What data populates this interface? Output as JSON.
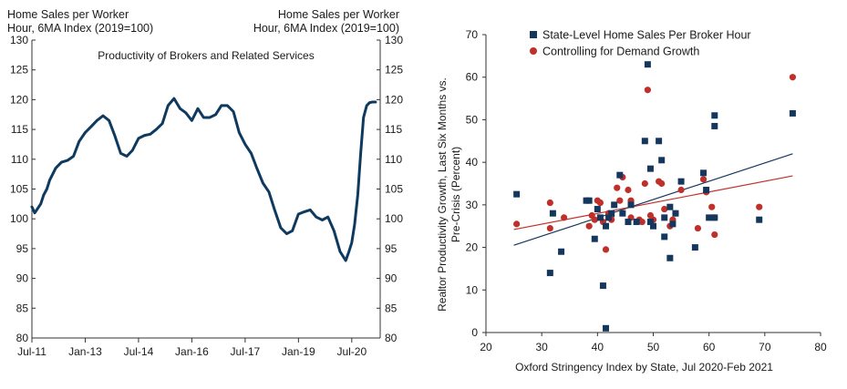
{
  "colors": {
    "line": "#0f3a5f",
    "blue_series": "#16375d",
    "red_series": "#c0302b",
    "axis": "#333333"
  },
  "chart_data": [
    {
      "type": "line",
      "title": "Productivity of Brokers and Related Services",
      "left_axis_label": [
        "Home Sales per Worker",
        "Hour, 6MA Index (2019=100)"
      ],
      "right_axis_label": [
        "Home Sales per Worker",
        "Hour, 6MA Index (2019=100)"
      ],
      "x_tick_labels": [
        "Jul-11",
        "Jan-13",
        "Jul-14",
        "Jan-16",
        "Jul-17",
        "Jan-19",
        "Jul-20"
      ],
      "x_tick_positions": [
        2011.5,
        2013.0,
        2014.5,
        2016.0,
        2017.5,
        2019.0,
        2020.5
      ],
      "xlim": [
        2011.5,
        2021.3
      ],
      "ylim": [
        80,
        130
      ],
      "y_ticks": [
        80,
        85,
        90,
        95,
        100,
        105,
        110,
        115,
        120,
        125,
        130
      ],
      "series": [
        {
          "name": "Home Sales per Worker Hour, 6MA Index (2019=100)",
          "x": [
            2011.5,
            2011.58,
            2011.67,
            2011.75,
            2011.83,
            2011.92,
            2012.0,
            2012.17,
            2012.33,
            2012.5,
            2012.67,
            2012.83,
            2013.0,
            2013.17,
            2013.33,
            2013.5,
            2013.67,
            2013.83,
            2014.0,
            2014.17,
            2014.33,
            2014.5,
            2014.67,
            2014.83,
            2015.0,
            2015.17,
            2015.33,
            2015.5,
            2015.67,
            2015.83,
            2016.0,
            2016.17,
            2016.33,
            2016.5,
            2016.67,
            2016.83,
            2017.0,
            2017.17,
            2017.33,
            2017.5,
            2017.67,
            2017.83,
            2018.0,
            2018.17,
            2018.33,
            2018.5,
            2018.67,
            2018.83,
            2019.0,
            2019.17,
            2019.33,
            2019.5,
            2019.67,
            2019.83,
            2020.0,
            2020.17,
            2020.33,
            2020.42,
            2020.5,
            2020.58,
            2020.67,
            2020.75,
            2020.83,
            2020.92,
            2021.0,
            2021.08,
            2021.17
          ],
          "y": [
            102,
            101,
            101.8,
            102.5,
            104,
            105,
            106.5,
            108.5,
            109.5,
            109.8,
            110.5,
            113,
            114.5,
            115.5,
            116.5,
            117.3,
            116.5,
            114,
            111,
            110.5,
            111.5,
            113.5,
            114,
            114.2,
            115,
            116,
            119,
            120.2,
            118.5,
            117.8,
            116.5,
            118.5,
            117,
            117,
            117.5,
            119,
            119,
            118,
            114.5,
            112.5,
            111,
            108.5,
            106,
            104.5,
            101.5,
            98.5,
            97.5,
            98,
            100.8,
            101.2,
            101.5,
            100.3,
            99.8,
            100.3,
            98,
            94.5,
            93,
            94.5,
            96,
            99,
            104,
            111,
            117,
            119,
            119.5,
            119.6,
            119.6
          ]
        }
      ]
    },
    {
      "type": "scatter",
      "xlabel": "Oxford Stringency Index by State, Jul 2020-Feb 2021",
      "ylabel": [
        "Realtor Productivity Growth, Last Six Months vs.",
        "Pre-Crisis (Percent)"
      ],
      "xlim": [
        20,
        80
      ],
      "ylim": [
        0,
        70
      ],
      "x_ticks": [
        20,
        30,
        40,
        50,
        60,
        70,
        80
      ],
      "y_ticks": [
        0,
        10,
        20,
        30,
        40,
        50,
        60,
        70
      ],
      "legend_position": "top-left",
      "series": [
        {
          "name": "State-Level Home Sales Per Broker Hour",
          "marker": "square",
          "points": [
            [
              25.5,
              32.5
            ],
            [
              31.5,
              14
            ],
            [
              32,
              28
            ],
            [
              33.5,
              19
            ],
            [
              38,
              31
            ],
            [
              38.5,
              31
            ],
            [
              39.5,
              22
            ],
            [
              40,
              29
            ],
            [
              40.5,
              27
            ],
            [
              41,
              11
            ],
            [
              41.5,
              1
            ],
            [
              41.5,
              25
            ],
            [
              42,
              27
            ],
            [
              42.5,
              28
            ],
            [
              43,
              30
            ],
            [
              44,
              37
            ],
            [
              44.5,
              28
            ],
            [
              45.5,
              26
            ],
            [
              46,
              30
            ],
            [
              47,
              26
            ],
            [
              48.5,
              45
            ],
            [
              49,
              63
            ],
            [
              49.5,
              38.5
            ],
            [
              49.5,
              26
            ],
            [
              50,
              25
            ],
            [
              51,
              45
            ],
            [
              51.5,
              40.5
            ],
            [
              52,
              27
            ],
            [
              52,
              22.5
            ],
            [
              53,
              29.5
            ],
            [
              53,
              17.5
            ],
            [
              53.5,
              25.5
            ],
            [
              54,
              28
            ],
            [
              55,
              35.5
            ],
            [
              57.5,
              20
            ],
            [
              59,
              37.5
            ],
            [
              59.5,
              33.5
            ],
            [
              60,
              27
            ],
            [
              61,
              51
            ],
            [
              61,
              48.5
            ],
            [
              61,
              27
            ],
            [
              69,
              26.5
            ],
            [
              75,
              51.5
            ]
          ],
          "trendline": [
            [
              25,
              20.5
            ],
            [
              75,
              42
            ]
          ]
        },
        {
          "name": "Controlling for Demand Growth",
          "marker": "circle",
          "points": [
            [
              25.5,
              25.5
            ],
            [
              31.5,
              30.5
            ],
            [
              31.5,
              24.5
            ],
            [
              34,
              27
            ],
            [
              38.5,
              25
            ],
            [
              39,
              27.5
            ],
            [
              39.5,
              26.5
            ],
            [
              40,
              31
            ],
            [
              40.5,
              30.5
            ],
            [
              41,
              26
            ],
            [
              41.5,
              19.5
            ],
            [
              42,
              28
            ],
            [
              42.5,
              27.5
            ],
            [
              42.5,
              26.5
            ],
            [
              43.5,
              34
            ],
            [
              44,
              31
            ],
            [
              44.5,
              36.5
            ],
            [
              45.5,
              33.5
            ],
            [
              46,
              31
            ],
            [
              46,
              27
            ],
            [
              47.5,
              26.5
            ],
            [
              48,
              26
            ],
            [
              48.5,
              35
            ],
            [
              49,
              57
            ],
            [
              49.5,
              27.5
            ],
            [
              50,
              26.5
            ],
            [
              51,
              35.5
            ],
            [
              51.5,
              35
            ],
            [
              52,
              29
            ],
            [
              53,
              25
            ],
            [
              53.5,
              26.5
            ],
            [
              54,
              28
            ],
            [
              55,
              33.5
            ],
            [
              58,
              24.5
            ],
            [
              59,
              36
            ],
            [
              59.5,
              33
            ],
            [
              60.5,
              29.5
            ],
            [
              61,
              23
            ],
            [
              61,
              27
            ],
            [
              69,
              29.5
            ],
            [
              75,
              60
            ]
          ],
          "trendline": [
            [
              25,
              24.2
            ],
            [
              75,
              36.8
            ]
          ]
        }
      ]
    }
  ]
}
